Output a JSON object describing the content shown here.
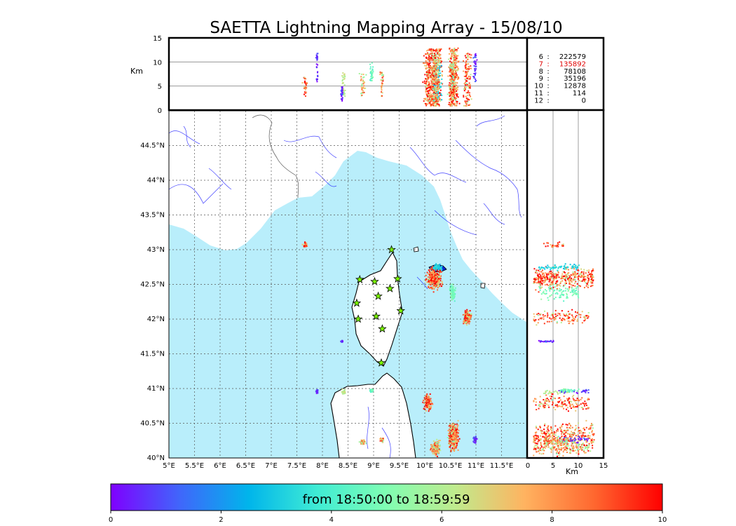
{
  "title": "SAETTA Lightning Mapping Array - 15/08/10",
  "colorbar": {
    "label": "from 18:50:00 to 18:59:59",
    "range": [
      0,
      10
    ],
    "ticks": [
      "0",
      "2",
      "4",
      "6",
      "8",
      "10"
    ],
    "colormap": [
      "#7f00ff",
      "#4066fb",
      "#00b5eb",
      "#40ecd4",
      "#80feb3",
      "#c0eb8d",
      "#ffb360",
      "#ff6830",
      "#ff0000"
    ]
  },
  "chart_data": {
    "type": "scatter",
    "title": "SAETTA Lightning Mapping Array - 15/08/10",
    "map_panel": {
      "xlim": [
        5,
        12
      ],
      "ylim": [
        40,
        45
      ],
      "x_ticks": [
        {
          "v": 5,
          "label": "5°E"
        },
        {
          "v": 5.5,
          "label": "5.5°E"
        },
        {
          "v": 6,
          "label": "6°E"
        },
        {
          "v": 6.5,
          "label": "6.5°E"
        },
        {
          "v": 7,
          "label": "7°E"
        },
        {
          "v": 7.5,
          "label": "7.5°E"
        },
        {
          "v": 8,
          "label": "8°E"
        },
        {
          "v": 8.5,
          "label": "8.5°E"
        },
        {
          "v": 9,
          "label": "9°E"
        },
        {
          "v": 9.5,
          "label": "9.5°E"
        },
        {
          "v": 10,
          "label": "10°E"
        },
        {
          "v": 10.5,
          "label": "10.5°E"
        },
        {
          "v": 11,
          "label": "11°E"
        },
        {
          "v": 11.5,
          "label": "11.5°E"
        }
      ],
      "y_ticks": [
        {
          "v": 40,
          "label": "40°N"
        },
        {
          "v": 40.5,
          "label": "40.5°N"
        },
        {
          "v": 41,
          "label": "41°N"
        },
        {
          "v": 41.5,
          "label": "41.5°N"
        },
        {
          "v": 42,
          "label": "42°N"
        },
        {
          "v": 42.5,
          "label": "42.5°N"
        },
        {
          "v": 43,
          "label": "43°N"
        },
        {
          "v": 43.5,
          "label": "43.5°N"
        },
        {
          "v": 44,
          "label": "44°N"
        },
        {
          "v": 44.5,
          "label": "44.5°N"
        }
      ],
      "grid": "dotted"
    },
    "altitude_lon_panel": {
      "ylabel": "Km",
      "ylim": [
        0,
        15
      ],
      "y_ticks": [
        "0",
        "5",
        "10",
        "15"
      ]
    },
    "altitude_lat_panel": {
      "xlabel": "Km",
      "xlim": [
        0,
        15
      ],
      "x_ticks": [
        "0",
        "5",
        "10",
        "15"
      ]
    },
    "stations": [
      {
        "lon": 9.35,
        "lat": 43.0
      },
      {
        "lon": 8.73,
        "lat": 42.57
      },
      {
        "lon": 9.02,
        "lat": 42.54
      },
      {
        "lon": 9.47,
        "lat": 42.58
      },
      {
        "lon": 9.09,
        "lat": 42.33
      },
      {
        "lon": 9.32,
        "lat": 42.44
      },
      {
        "lon": 8.67,
        "lat": 42.23
      },
      {
        "lon": 9.53,
        "lat": 42.12
      },
      {
        "lon": 8.7,
        "lat": 42.0
      },
      {
        "lon": 9.05,
        "lat": 42.04
      },
      {
        "lon": 9.17,
        "lat": 41.86
      },
      {
        "lon": 9.15,
        "lat": 41.37
      }
    ],
    "clusters": [
      {
        "lon": 7.65,
        "lat": 43.08,
        "rlon": 0.07,
        "rlat": 0.05,
        "zmin": 3,
        "zmax": 7,
        "t": 8.6
      },
      {
        "lon": 10.17,
        "lat": 42.6,
        "rlon": 0.19,
        "rlat": 0.21,
        "zmin": 1,
        "zmax": 13,
        "t": 8.7
      },
      {
        "lon": 10.24,
        "lat": 42.76,
        "rlon": 0.12,
        "rlat": 0.06,
        "zmin": 2,
        "zmax": 10,
        "t": 3.2
      },
      {
        "lon": 10.53,
        "lat": 42.4,
        "rlon": 0.07,
        "rlat": 0.15,
        "zmin": 2,
        "zmax": 10,
        "t": 4.8
      },
      {
        "lon": 10.82,
        "lat": 42.04,
        "rlon": 0.1,
        "rlat": 0.13,
        "zmin": 1,
        "zmax": 12,
        "t": 8.6
      },
      {
        "lon": 10.05,
        "lat": 40.8,
        "rlon": 0.11,
        "rlat": 0.15,
        "zmin": 1,
        "zmax": 12,
        "t": 8.5
      },
      {
        "lon": 10.55,
        "lat": 40.32,
        "rlon": 0.14,
        "rlat": 0.28,
        "zmin": 1,
        "zmax": 13,
        "t": 8.3
      },
      {
        "lon": 10.2,
        "lat": 40.15,
        "rlon": 0.12,
        "rlat": 0.14,
        "zmin": 1,
        "zmax": 12,
        "t": 7.6
      },
      {
        "lon": 10.97,
        "lat": 40.28,
        "rlon": 0.05,
        "rlat": 0.08,
        "zmin": 6,
        "zmax": 12,
        "t": 0.5
      },
      {
        "lon": 8.4,
        "lat": 40.96,
        "rlon": 0.06,
        "rlat": 0.05,
        "zmin": 3,
        "zmax": 8,
        "t": 6.4
      },
      {
        "lon": 7.88,
        "lat": 40.97,
        "rlon": 0.04,
        "rlat": 0.04,
        "zmin": 6,
        "zmax": 12,
        "t": 0.6
      },
      {
        "lon": 8.95,
        "lat": 40.98,
        "rlon": 0.05,
        "rlat": 0.04,
        "zmin": 6,
        "zmax": 10,
        "t": 4.6
      },
      {
        "lon": 8.77,
        "lat": 40.24,
        "rlon": 0.08,
        "rlat": 0.05,
        "zmin": 3,
        "zmax": 8,
        "t": 7.2
      },
      {
        "lon": 9.15,
        "lat": 40.27,
        "rlon": 0.05,
        "rlat": 0.05,
        "zmin": 3,
        "zmax": 8,
        "t": 8.0
      },
      {
        "lon": 8.37,
        "lat": 41.69,
        "rlon": 0.03,
        "rlat": 0.02,
        "zmin": 2,
        "zmax": 5,
        "t": 0.6
      }
    ],
    "counts": [
      {
        "key": "6",
        "value": "222579",
        "highlight": false
      },
      {
        "key": "7",
        "value": "135892",
        "highlight": true
      },
      {
        "key": "8",
        "value": "78108",
        "highlight": false
      },
      {
        "key": "9",
        "value": "35196",
        "highlight": false
      },
      {
        "key": "10",
        "value": "12878",
        "highlight": false
      },
      {
        "key": "11",
        "value": "114",
        "highlight": false
      },
      {
        "key": "12",
        "value": "0",
        "highlight": false
      }
    ]
  }
}
